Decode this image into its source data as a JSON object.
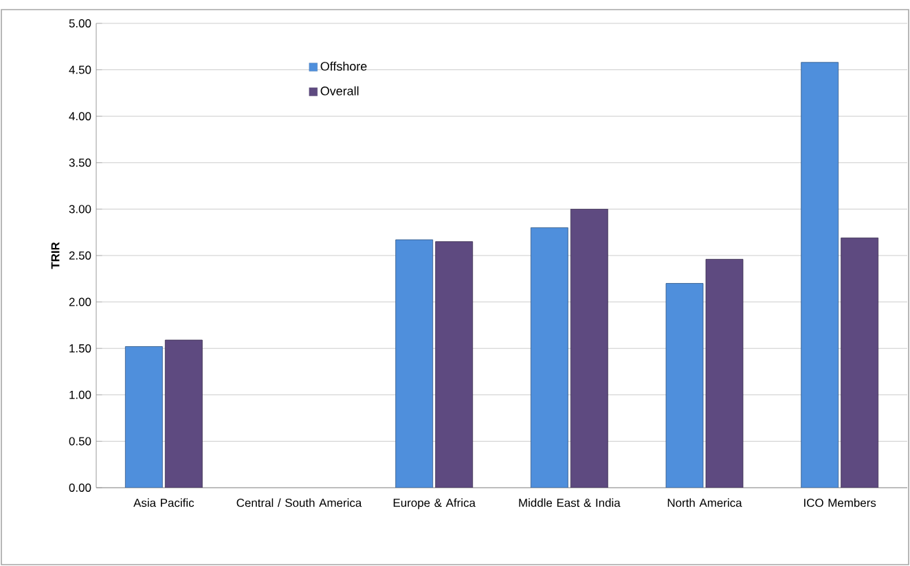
{
  "chart_data": {
    "type": "bar",
    "ylabel": "TRIR",
    "categories": [
      "Asia Pacific",
      "Central / South America",
      "Europe & Africa",
      "Middle East & India",
      "North America",
      "ICO Members"
    ],
    "series": [
      {
        "name": "Offshore",
        "color": "#4f8fdc",
        "values": [
          1.52,
          null,
          2.67,
          2.8,
          2.2,
          4.58
        ]
      },
      {
        "name": "Overall",
        "color": "#5e4a80",
        "values": [
          1.59,
          null,
          2.65,
          3.0,
          2.46,
          2.69
        ]
      }
    ],
    "ylim": [
      0,
      5
    ],
    "yticks": [
      {
        "value": 0,
        "label": "0.00"
      },
      {
        "value": 0.5,
        "label": "0.50"
      },
      {
        "value": 1,
        "label": "1.00"
      },
      {
        "value": 1.5,
        "label": "1.50"
      },
      {
        "value": 2,
        "label": "2.00"
      },
      {
        "value": 2.5,
        "label": "2.50"
      },
      {
        "value": 3,
        "label": "3.00"
      },
      {
        "value": 3.5,
        "label": "3.50"
      },
      {
        "value": 4,
        "label": "4.00"
      },
      {
        "value": 4.5,
        "label": "4.50"
      },
      {
        "value": 5,
        "label": "5.00"
      }
    ],
    "grid": "y",
    "legend": "top"
  }
}
